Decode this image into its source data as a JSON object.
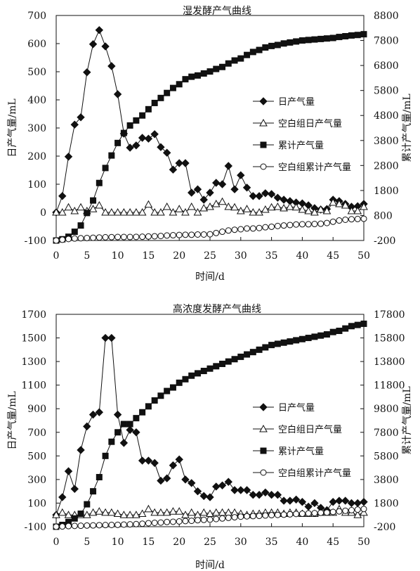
{
  "chart_data": [
    {
      "type": "line",
      "title": "湿发酵产气曲线",
      "xlabel": "时间/d",
      "ylabel": "日产气量/mL",
      "y2label": "累计产气量/mL",
      "xlim": [
        0,
        50
      ],
      "ylim": [
        -100,
        700
      ],
      "y2lim": [
        -200,
        8800
      ],
      "x_ticks": [
        "0",
        "5",
        "10",
        "15",
        "20",
        "25",
        "30",
        "35",
        "40",
        "45",
        "50"
      ],
      "y_ticks": [
        "-100",
        "0",
        "100",
        "200",
        "300",
        "400",
        "500",
        "600",
        "700"
      ],
      "y2_ticks": [
        "-200",
        "800",
        "1800",
        "2800",
        "3800",
        "4800",
        "5800",
        "6800",
        "7800",
        "8800"
      ],
      "legend_position": "right",
      "x": [
        0,
        1,
        2,
        3,
        4,
        5,
        6,
        7,
        8,
        9,
        10,
        11,
        12,
        13,
        14,
        15,
        16,
        17,
        18,
        19,
        20,
        21,
        22,
        23,
        24,
        25,
        26,
        27,
        28,
        29,
        30,
        31,
        32,
        33,
        34,
        35,
        36,
        37,
        38,
        39,
        40,
        41,
        42,
        43,
        44,
        45,
        46,
        47,
        48,
        49,
        50
      ],
      "series": [
        {
          "name": "日产气量",
          "axis": "left",
          "marker": "diamond",
          "values": [
            0,
            58,
            198,
            312,
            338,
            498,
            598,
            648,
            590,
            520,
            420,
            280,
            230,
            238,
            265,
            262,
            278,
            232,
            212,
            152,
            175,
            175,
            70,
            82,
            45,
            70,
            105,
            100,
            165,
            82,
            132,
            88,
            58,
            58,
            68,
            65,
            52,
            45,
            40,
            35,
            32,
            25,
            15,
            10,
            12,
            45,
            40,
            30,
            20,
            22,
            30
          ]
        },
        {
          "name": "空白组日产气量",
          "axis": "left",
          "marker": "triangle",
          "values": [
            0,
            0,
            18,
            5,
            18,
            5,
            12,
            25,
            0,
            0,
            0,
            0,
            0,
            0,
            0,
            28,
            0,
            0,
            20,
            0,
            12,
            0,
            20,
            0,
            15,
            20,
            30,
            38,
            20,
            18,
            5,
            12,
            0,
            0,
            10,
            18,
            20,
            15,
            20,
            18,
            10,
            5,
            0,
            10,
            5,
            35,
            30,
            25,
            5,
            5,
            20
          ]
        },
        {
          "name": "累计产气量",
          "axis": "right",
          "marker": "square",
          "values": [
            -200,
            -150,
            -50,
            150,
            400,
            900,
            1400,
            2100,
            2700,
            3200,
            3700,
            4100,
            4400,
            4600,
            4800,
            5050,
            5300,
            5500,
            5700,
            5900,
            6050,
            6250,
            6350,
            6400,
            6480,
            6560,
            6660,
            6740,
            6880,
            7000,
            7080,
            7220,
            7340,
            7420,
            7520,
            7580,
            7620,
            7680,
            7720,
            7760,
            7800,
            7820,
            7840,
            7860,
            7880,
            7900,
            7940,
            7970,
            8000,
            8020,
            8050
          ]
        },
        {
          "name": "空白组累计产气量",
          "axis": "right",
          "marker": "circle",
          "values": [
            -200,
            -170,
            -140,
            -120,
            -110,
            -100,
            -90,
            -80,
            -70,
            -65,
            -60,
            -60,
            -60,
            -55,
            -50,
            -40,
            -30,
            -20,
            0,
            10,
            20,
            30,
            30,
            40,
            40,
            50,
            100,
            150,
            200,
            230,
            250,
            280,
            280,
            300,
            330,
            350,
            380,
            400,
            420,
            440,
            450,
            450,
            460,
            470,
            500,
            550,
            600,
            630,
            650,
            660,
            670
          ]
        }
      ]
    },
    {
      "type": "line",
      "title": "高浓度发酵产气曲线",
      "xlabel": "时间/d",
      "ylabel": "日产气量/mL",
      "y2label": "累计产气量/mL",
      "xlim": [
        0,
        50
      ],
      "ylim": [
        -100,
        1700
      ],
      "y2lim": [
        -200,
        17800
      ],
      "x_ticks": [
        "0",
        "5",
        "10",
        "15",
        "20",
        "25",
        "30",
        "35",
        "40",
        "45",
        "50"
      ],
      "y_ticks": [
        "-100",
        "100",
        "300",
        "500",
        "700",
        "900",
        "1100",
        "1300",
        "1500",
        "1700"
      ],
      "y2_ticks": [
        "-200",
        "1800",
        "3800",
        "5800",
        "7800",
        "9800",
        "11800",
        "13800",
        "15800",
        "17800"
      ],
      "legend_position": "right",
      "x": [
        0,
        1,
        2,
        3,
        4,
        5,
        6,
        7,
        8,
        9,
        10,
        11,
        12,
        13,
        14,
        15,
        16,
        17,
        18,
        19,
        20,
        21,
        22,
        23,
        24,
        25,
        26,
        27,
        28,
        29,
        30,
        31,
        32,
        33,
        34,
        35,
        36,
        37,
        38,
        39,
        40,
        41,
        42,
        43,
        44,
        45,
        46,
        47,
        48,
        49,
        50
      ],
      "series": [
        {
          "name": "日产气量",
          "axis": "left",
          "marker": "diamond",
          "values": [
            0,
            150,
            370,
            220,
            550,
            750,
            850,
            870,
            1500,
            1500,
            850,
            610,
            720,
            700,
            460,
            460,
            440,
            290,
            310,
            420,
            470,
            300,
            270,
            200,
            160,
            150,
            240,
            250,
            280,
            210,
            210,
            210,
            170,
            170,
            190,
            170,
            170,
            120,
            120,
            130,
            110,
            70,
            100,
            60,
            40,
            110,
            120,
            120,
            100,
            100,
            110
          ]
        },
        {
          "name": "空白组日产气量",
          "axis": "left",
          "marker": "triangle",
          "values": [
            0,
            20,
            0,
            0,
            0,
            0,
            20,
            30,
            20,
            20,
            10,
            0,
            0,
            0,
            10,
            50,
            20,
            20,
            20,
            30,
            30,
            0,
            20,
            0,
            20,
            10,
            20,
            20,
            20,
            20,
            10,
            0,
            10,
            10,
            20,
            20,
            20,
            10,
            20,
            20,
            10,
            10,
            10,
            20,
            20,
            20,
            50,
            20,
            20,
            0,
            20
          ]
        },
        {
          "name": "累计产气量",
          "axis": "right",
          "marker": "square",
          "values": [
            -200,
            -50,
            200,
            500,
            900,
            1700,
            2800,
            4000,
            5800,
            7000,
            7800,
            8500,
            8500,
            9000,
            9500,
            10000,
            10500,
            10900,
            11300,
            11600,
            12000,
            12300,
            12600,
            12800,
            13000,
            13200,
            13400,
            13600,
            13800,
            14000,
            14200,
            14400,
            14600,
            14800,
            15000,
            15200,
            15300,
            15400,
            15500,
            15600,
            15700,
            15800,
            15900,
            16000,
            16100,
            16300,
            16400,
            16600,
            16800,
            16900,
            17000
          ]
        },
        {
          "name": "空白组累计产气量",
          "axis": "right",
          "marker": "circle",
          "values": [
            -200,
            -180,
            -150,
            -130,
            -120,
            -100,
            -90,
            -70,
            -60,
            -50,
            -40,
            -20,
            0,
            20,
            50,
            100,
            130,
            150,
            200,
            220,
            250,
            280,
            300,
            350,
            380,
            400,
            450,
            500,
            550,
            600,
            650,
            680,
            700,
            720,
            750,
            780,
            800,
            820,
            850,
            880,
            900,
            930,
            950,
            980,
            1000,
            1050,
            1100,
            1150,
            1200,
            1250,
            1300
          ]
        }
      ]
    }
  ]
}
